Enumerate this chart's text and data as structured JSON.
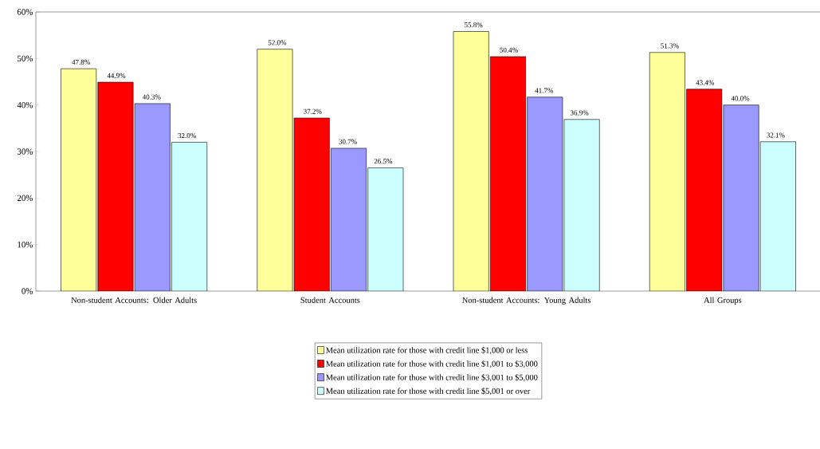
{
  "chart_data": {
    "type": "bar",
    "categories": [
      "Non-student Accounts: Older Adults",
      "Student Accounts",
      "Non-student Accounts: Young Adults",
      "All Groups"
    ],
    "series": [
      {
        "name": "Mean utilization rate for those with credit line $1,000 or less",
        "color": "#ffff99",
        "values": [
          47.8,
          52.0,
          55.8,
          51.3
        ],
        "value_labels": [
          "47.8%",
          "52.0%",
          "55.8%",
          "51.3%"
        ]
      },
      {
        "name": "Mean utilization rate for those with credit line $1,001 to $3,000",
        "color": "#ff0000",
        "values": [
          44.9,
          37.2,
          50.4,
          43.4
        ],
        "value_labels": [
          "44.9%",
          "37.2%",
          "50.4%",
          "43.4%"
        ]
      },
      {
        "name": "Mean utilization rate for those with credit line $3,001 to $5,000",
        "color": "#9999ff",
        "values": [
          40.3,
          30.7,
          41.7,
          40.0
        ],
        "value_labels": [
          "40.3%",
          "30.7%",
          "41.7%",
          "40.0%"
        ]
      },
      {
        "name": "Mean utilization rate for those with credit line $5,001 or over",
        "color": "#ccffff",
        "values": [
          32.0,
          26.5,
          36.9,
          32.1
        ],
        "value_labels": [
          "32.0%",
          "26.5%",
          "36.9%",
          "32.1%"
        ]
      }
    ],
    "ylim": [
      0,
      60
    ],
    "yticks": [
      {
        "value": 0,
        "label": "0%"
      },
      {
        "value": 10,
        "label": "10%"
      },
      {
        "value": 20,
        "label": "20%"
      },
      {
        "value": 30,
        "label": "30%"
      },
      {
        "value": 40,
        "label": "40%"
      },
      {
        "value": 50,
        "label": "50%"
      },
      {
        "value": 60,
        "label": "60%"
      }
    ],
    "grid": false,
    "legend": "bottom"
  }
}
